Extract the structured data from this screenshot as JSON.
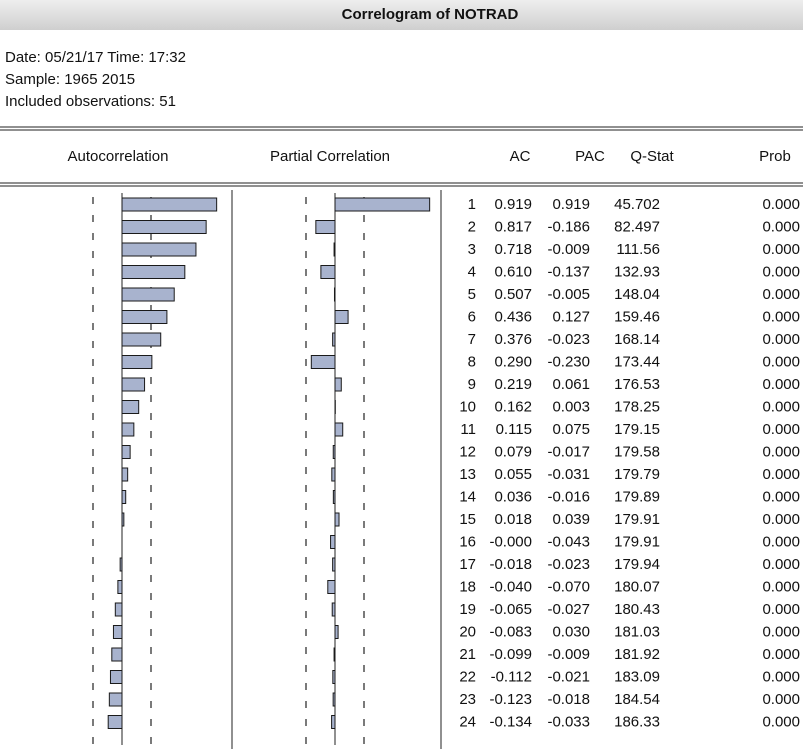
{
  "header": {
    "title": "Correlogram of NOTRAD"
  },
  "info": [
    "Date: 05/21/17   Time: 17:32",
    "Sample: 1965 2015",
    "Included observations: 51"
  ],
  "columns": [
    "Autocorrelation",
    "Partial Correlation",
    "AC",
    "PAC",
    "Q-Stat",
    "Prob"
  ],
  "table": {
    "rows": [
      [
        "1",
        "0.919",
        "0.919",
        "45.702",
        "0.000"
      ],
      [
        "2",
        "0.817",
        "-0.186",
        "82.497",
        "0.000"
      ],
      [
        "3",
        "0.718",
        "-0.009",
        "111.56",
        "0.000"
      ],
      [
        "4",
        "0.610",
        "-0.137",
        "132.93",
        "0.000"
      ],
      [
        "5",
        "0.507",
        "-0.005",
        "148.04",
        "0.000"
      ],
      [
        "6",
        "0.436",
        "0.127",
        "159.46",
        "0.000"
      ],
      [
        "7",
        "0.376",
        "-0.023",
        "168.14",
        "0.000"
      ],
      [
        "8",
        "0.290",
        "-0.230",
        "173.44",
        "0.000"
      ],
      [
        "9",
        "0.219",
        "0.061",
        "176.53",
        "0.000"
      ],
      [
        "10",
        "0.162",
        "0.003",
        "178.25",
        "0.000"
      ],
      [
        "11",
        "0.115",
        "0.075",
        "179.15",
        "0.000"
      ],
      [
        "12",
        "0.079",
        "-0.017",
        "179.58",
        "0.000"
      ],
      [
        "13",
        "0.055",
        "-0.031",
        "179.79",
        "0.000"
      ],
      [
        "14",
        "0.036",
        "-0.016",
        "179.89",
        "0.000"
      ],
      [
        "15",
        "0.018",
        "0.039",
        "179.91",
        "0.000"
      ],
      [
        "16",
        "-0.000",
        "-0.043",
        "179.91",
        "0.000"
      ],
      [
        "17",
        "-0.018",
        "-0.023",
        "179.94",
        "0.000"
      ],
      [
        "18",
        "-0.040",
        "-0.070",
        "180.07",
        "0.000"
      ],
      [
        "19",
        "-0.065",
        "-0.027",
        "180.43",
        "0.000"
      ],
      [
        "20",
        "-0.083",
        "0.030",
        "181.03",
        "0.000"
      ],
      [
        "21",
        "-0.099",
        "-0.009",
        "181.92",
        "0.000"
      ],
      [
        "22",
        "-0.112",
        "-0.021",
        "183.09",
        "0.000"
      ],
      [
        "23",
        "-0.123",
        "-0.018",
        "184.54",
        "0.000"
      ],
      [
        "24",
        "-0.134",
        "-0.033",
        "186.33",
        "0.000"
      ]
    ]
  }
}
